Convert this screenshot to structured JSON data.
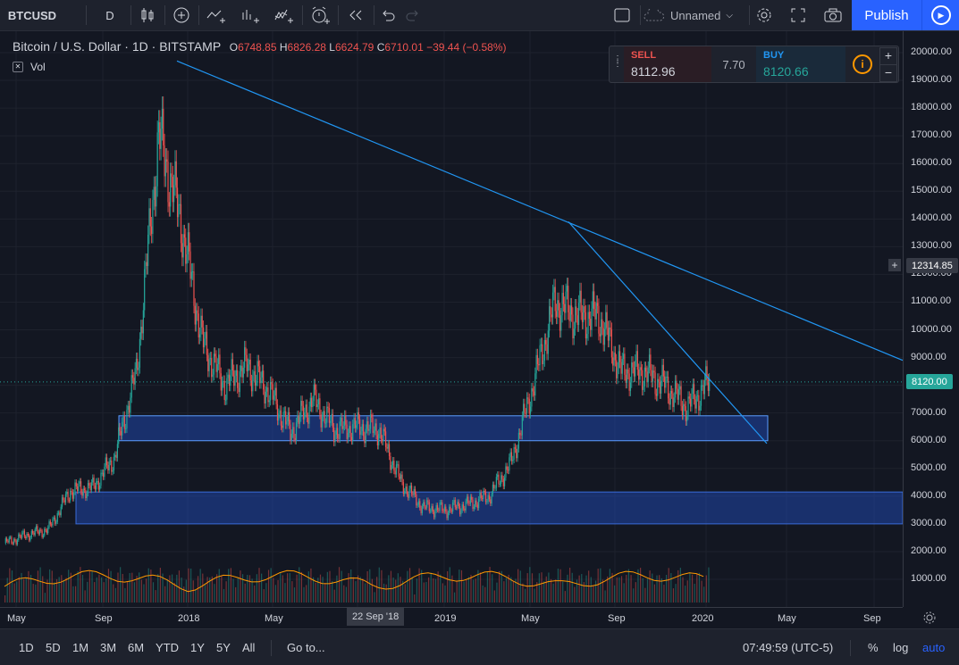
{
  "toolbar": {
    "symbol": "BTCUSD",
    "interval": "D",
    "layout_name": "Unnamed",
    "publish_label": "Publish"
  },
  "legend": {
    "title": "Bitcoin / U.S. Dollar",
    "interval": "1D",
    "exchange": "BITSTAMP",
    "o_label": "O",
    "o": "6748.85",
    "h_label": "H",
    "h": "6826.28",
    "l_label": "L",
    "l": "6624.79",
    "c_label": "C",
    "c": "6710.01",
    "change": "−39.44 (−0.58%)",
    "vol_label": "Vol"
  },
  "trade_panel": {
    "sell_label": "SELL",
    "sell_price": "8112.96",
    "spread": "7.70",
    "buy_label": "BUY",
    "buy_price": "8120.66"
  },
  "price_axis": {
    "labels": [
      "20000.00",
      "19000.00",
      "18000.00",
      "17000.00",
      "16000.00",
      "15000.00",
      "14000.00",
      "13000.00",
      "12000.00",
      "11000.00",
      "10000.00",
      "9000.00",
      "7000.00",
      "6000.00",
      "5000.00",
      "4000.00",
      "3000.00",
      "2000.00",
      "1000.00"
    ],
    "crosshair_price": "12314.85",
    "last_price": "8120.00"
  },
  "time_axis": {
    "labels": [
      "May",
      "Sep",
      "2018",
      "May",
      "2019",
      "May",
      "Sep",
      "2020",
      "May",
      "Sep"
    ],
    "crosshair_date": "22 Sep '18"
  },
  "bottom_bar": {
    "ranges": [
      "1D",
      "5D",
      "1M",
      "3M",
      "6M",
      "YTD",
      "1Y",
      "5Y",
      "All"
    ],
    "goto_label": "Go to...",
    "clock": "07:49:59 (UTC-5)",
    "percent_label": "%",
    "log_label": "log",
    "auto_label": "auto"
  },
  "colors": {
    "background": "#131722",
    "up": "#26a69a",
    "down": "#ef5350",
    "trendline": "#2196f3",
    "zone": "#1e3a8a",
    "accent": "#2962ff",
    "volume_ma": "#ff9800"
  },
  "chart_data": {
    "type": "candlestick",
    "series": [
      {
        "name": "BTCUSD",
        "x": [
          "2017-05",
          "2017-06",
          "2017-07",
          "2017-08",
          "2017-09",
          "2017-10",
          "2017-11",
          "2017-12",
          "2018-01",
          "2018-02",
          "2018-03",
          "2018-04",
          "2018-05",
          "2018-06",
          "2018-07",
          "2018-08",
          "2018-09",
          "2018-10",
          "2018-11",
          "2018-12",
          "2019-01",
          "2019-02",
          "2019-03",
          "2019-04",
          "2019-05",
          "2019-06",
          "2019-07",
          "2019-08",
          "2019-09",
          "2019-10",
          "2019-11",
          "2019-12",
          "2020-01"
        ],
        "values": [
          2300,
          2600,
          2800,
          4200,
          4300,
          5400,
          8500,
          17000,
          14000,
          9500,
          8000,
          8700,
          7800,
          6300,
          7500,
          6400,
          6500,
          6400,
          4500,
          3600,
          3500,
          3700,
          4000,
          5200,
          8000,
          11000,
          10500,
          10500,
          8500,
          8500,
          8000,
          7200,
          8120
        ]
      }
    ],
    "ylim": [
      0,
      20500
    ]
  }
}
